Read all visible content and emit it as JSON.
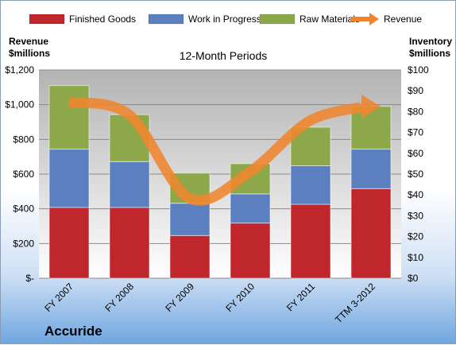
{
  "chart_data": {
    "type": "bar",
    "subtitle": "12-Month Periods",
    "company": "Accuride",
    "categories": [
      "FY 2007",
      "FY 2008",
      "FY 2009",
      "FY 2010",
      "FY 2011",
      "TTM 3-2012"
    ],
    "left_axis": {
      "title_line1": "Revenue",
      "title_line2": "$millions",
      "ylim": [
        0,
        1200
      ],
      "ticks": [
        "$-",
        "$200",
        "$400",
        "$600",
        "$800",
        "$1,000",
        "$1,200"
      ]
    },
    "right_axis": {
      "title_line1": "Inventory",
      "title_line2": "$millions",
      "ylim": [
        0,
        100
      ],
      "ticks": [
        "$0",
        "$10",
        "$20",
        "$30",
        "$40",
        "$50",
        "$60",
        "$70",
        "$80",
        "$90",
        "$100"
      ]
    },
    "series": [
      {
        "name": "Finished Goods",
        "axis": "right",
        "color": "#c0272d",
        "values": [
          34,
          34,
          20.5,
          26.5,
          35.5,
          43
        ]
      },
      {
        "name": "Work in Progress",
        "axis": "right",
        "color": "#5b7fbf",
        "values": [
          28,
          22,
          15.5,
          14,
          18.5,
          19
        ]
      },
      {
        "name": "Raw Materials",
        "axis": "right",
        "color": "#8ca84b",
        "values": [
          30.5,
          22.5,
          14.5,
          14.5,
          18.5,
          20.5
        ]
      },
      {
        "name": "Revenue",
        "type": "line",
        "axis": "left",
        "color": "#f0852d",
        "values": [
          1015,
          940,
          460,
          615,
          910,
          990
        ]
      }
    ],
    "legend_position": "top",
    "grid": true
  }
}
